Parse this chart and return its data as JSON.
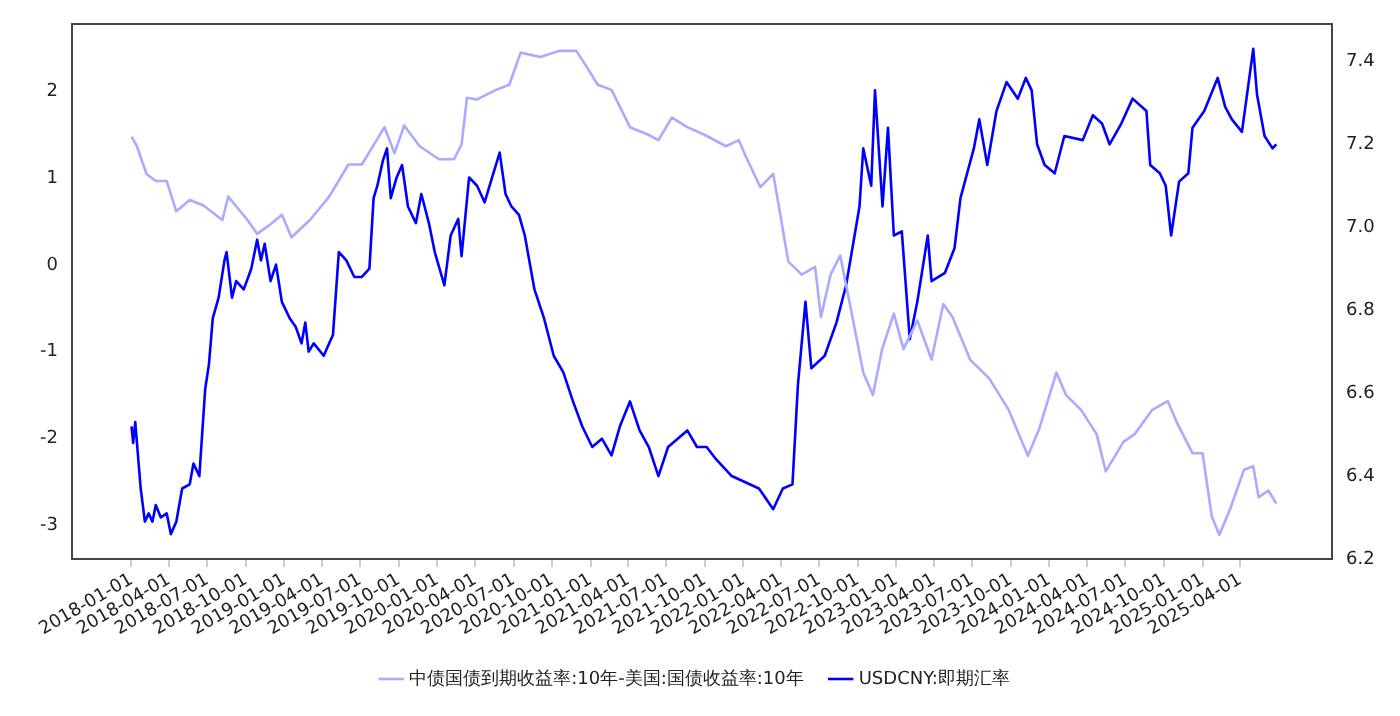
{
  "chart_data": {
    "type": "line",
    "legend": "bottom",
    "grid": false,
    "marker": "none",
    "line_style": "solid",
    "xlim": [
      "2017-08-12",
      "2025-11-06"
    ],
    "xticks": [
      "2018-01-01",
      "2018-04-01",
      "2018-07-01",
      "2018-10-01",
      "2019-01-01",
      "2019-04-01",
      "2019-07-01",
      "2019-10-01",
      "2020-01-01",
      "2020-04-01",
      "2020-07-01",
      "2020-10-01",
      "2021-01-01",
      "2021-04-01",
      "2021-07-01",
      "2021-10-01",
      "2022-01-01",
      "2022-04-01",
      "2022-07-01",
      "2022-10-01",
      "2023-01-01",
      "2023-04-01",
      "2023-07-01",
      "2023-10-01",
      "2024-01-01",
      "2024-04-01",
      "2024-07-01",
      "2024-10-01",
      "2025-01-01",
      "2025-04-01"
    ],
    "ylim": [
      -3.39,
      2.78
    ],
    "yticks": [
      -3,
      -2,
      -1,
      0,
      1,
      2
    ],
    "y2lim": [
      6.2,
      7.49
    ],
    "y2ticks": [
      6.2,
      6.4,
      6.6,
      6.8,
      {
        "value": 7,
        "label": "7.0"
      },
      7.2,
      7.4
    ],
    "series": [
      {
        "name": "中债国债到期收益率:10年-美国:国债收益率:10年",
        "color": "#aaaaff",
        "x": [
          "2018-01-01",
          "2018-01-14",
          "2018-02-06",
          "2018-02-28",
          "2018-03-26",
          "2018-04-18",
          "2018-05-20",
          "2018-06-21",
          "2018-08-06",
          "2018-08-20",
          "2018-10-05",
          "2018-10-28",
          "2018-11-29",
          "2018-12-26",
          "2019-01-18",
          "2019-03-03",
          "2019-04-18",
          "2019-06-03",
          "2019-07-05",
          "2019-08-28",
          "2019-09-21",
          "2019-10-14",
          "2019-11-20",
          "2020-01-05",
          "2020-02-10",
          "2020-02-28",
          "2020-03-12",
          "2020-04-05",
          "2020-05-20",
          "2020-06-21",
          "2020-07-18",
          "2020-09-03",
          "2020-10-18",
          "2020-11-28",
          "2020-12-21",
          "2021-01-18",
          "2021-02-20",
          "2021-04-05",
          "2021-05-20",
          "2021-06-12",
          "2021-07-14",
          "2021-08-20",
          "2021-10-01",
          "2021-11-20",
          "2021-12-21",
          "2022-01-05",
          "2022-02-10",
          "2022-03-13",
          "2022-03-26",
          "2022-04-18",
          "2022-05-20",
          "2022-06-21",
          "2022-07-05",
          "2022-07-28",
          "2022-08-20",
          "2022-09-12",
          "2022-10-14",
          "2022-11-06",
          "2022-11-28",
          "2022-12-26",
          "2023-01-18",
          "2023-02-20",
          "2023-03-26",
          "2023-04-23",
          "2023-05-15",
          "2023-06-26",
          "2023-08-11",
          "2023-09-26",
          "2023-11-11",
          "2023-12-08",
          "2024-01-18",
          "2024-02-10",
          "2024-03-17",
          "2024-04-23",
          "2024-05-15",
          "2024-06-26",
          "2024-07-23",
          "2024-09-03",
          "2024-10-10",
          "2024-11-01",
          "2024-12-08",
          "2025-01-01",
          "2025-01-23",
          "2025-02-10",
          "2025-03-08",
          "2025-04-10",
          "2025-05-02",
          "2025-05-15",
          "2025-06-07",
          "2025-06-26"
        ],
        "values": [
          1.48,
          1.37,
          1.05,
          0.97,
          0.97,
          0.62,
          0.75,
          0.69,
          0.52,
          0.79,
          0.52,
          0.36,
          0.47,
          0.58,
          0.32,
          0.52,
          0.79,
          1.16,
          1.16,
          1.59,
          1.29,
          1.61,
          1.37,
          1.22,
          1.22,
          1.39,
          1.93,
          1.91,
          2.02,
          2.08,
          2.45,
          2.4,
          2.47,
          2.47,
          2.3,
          2.08,
          2.02,
          1.59,
          1.5,
          1.44,
          1.7,
          1.59,
          1.5,
          1.37,
          1.44,
          1.27,
          0.9,
          1.05,
          0.69,
          0.04,
          -0.11,
          -0.02,
          -0.6,
          -0.11,
          0.11,
          -0.45,
          -1.24,
          -1.5,
          -0.97,
          -0.56,
          -0.97,
          -0.64,
          -1.09,
          -0.45,
          -0.6,
          -1.09,
          -1.31,
          -1.67,
          -2.2,
          -1.89,
          -1.24,
          -1.5,
          -1.67,
          -1.95,
          -2.38,
          -2.04,
          -1.95,
          -1.67,
          -1.57,
          -1.82,
          -2.17,
          -2.17,
          -2.9,
          -3.11,
          -2.81,
          -2.36,
          -2.32,
          -2.68,
          -2.6,
          -2.75
        ]
      },
      {
        "name": "USDCNY:即期汇率",
        "color": "#0000ff",
        "axis": "y2",
        "x": [
          "2018-01-01",
          "2018-01-05",
          "2018-01-10",
          "2018-01-23",
          "2018-02-02",
          "2018-02-11",
          "2018-02-20",
          "2018-02-28",
          "2018-03-12",
          "2018-03-26",
          "2018-04-05",
          "2018-04-18",
          "2018-05-02",
          "2018-05-20",
          "2018-05-29",
          "2018-06-12",
          "2018-06-26",
          "2018-07-05",
          "2018-07-14",
          "2018-07-28",
          "2018-08-11",
          "2018-08-16",
          "2018-08-29",
          "2018-09-08",
          "2018-09-26",
          "2018-10-14",
          "2018-10-28",
          "2018-11-06",
          "2018-11-15",
          "2018-11-29",
          "2018-12-12",
          "2018-12-26",
          "2019-01-14",
          "2019-01-28",
          "2019-02-11",
          "2019-02-20",
          "2019-02-28",
          "2019-03-12",
          "2019-04-05",
          "2019-04-18",
          "2019-04-27",
          "2019-05-11",
          "2019-05-29",
          "2019-06-17",
          "2019-07-05",
          "2019-07-23",
          "2019-08-02",
          "2019-08-11",
          "2019-08-24",
          "2019-09-03",
          "2019-09-12",
          "2019-09-26",
          "2019-10-09",
          "2019-10-23",
          "2019-11-11",
          "2019-11-24",
          "2019-12-12",
          "2019-12-26",
          "2020-01-18",
          "2020-02-02",
          "2020-02-20",
          "2020-02-28",
          "2020-03-17",
          "2020-04-05",
          "2020-04-23",
          "2020-05-11",
          "2020-05-29",
          "2020-06-12",
          "2020-06-26",
          "2020-07-14",
          "2020-07-28",
          "2020-08-20",
          "2020-09-12",
          "2020-10-05",
          "2020-10-28",
          "2020-11-20",
          "2020-12-12",
          "2021-01-05",
          "2021-01-28",
          "2021-02-20",
          "2021-03-12",
          "2021-04-05",
          "2021-04-28",
          "2021-05-20",
          "2021-06-12",
          "2021-07-05",
          "2021-07-28",
          "2021-08-20",
          "2021-09-12",
          "2021-10-05",
          "2021-10-28",
          "2021-12-04",
          "2022-02-07",
          "2022-03-13",
          "2022-04-05",
          "2022-04-28",
          "2022-05-11",
          "2022-05-29",
          "2022-06-12",
          "2022-07-14",
          "2022-08-11",
          "2022-09-03",
          "2022-10-05",
          "2022-10-14",
          "2022-11-02",
          "2022-11-11",
          "2022-11-29",
          "2022-12-12",
          "2022-12-26",
          "2023-01-14",
          "2023-02-02",
          "2023-02-20",
          "2023-03-17",
          "2023-03-26",
          "2023-04-27",
          "2023-05-20",
          "2023-06-03",
          "2023-07-05",
          "2023-07-18",
          "2023-08-06",
          "2023-08-28",
          "2023-09-21",
          "2023-10-18",
          "2023-11-06",
          "2023-11-20",
          "2023-12-03",
          "2023-12-21",
          "2024-01-14",
          "2024-02-06",
          "2024-03-21",
          "2024-04-14",
          "2024-05-06",
          "2024-05-24",
          "2024-06-21",
          "2024-07-18",
          "2024-08-20",
          "2024-08-29",
          "2024-09-21",
          "2024-10-05",
          "2024-10-18",
          "2024-11-06",
          "2024-11-28",
          "2024-12-08",
          "2025-01-05",
          "2025-02-06",
          "2025-02-24",
          "2025-03-12",
          "2025-04-05",
          "2025-05-02",
          "2025-05-11",
          "2025-05-29",
          "2025-06-17",
          "2025-06-26"
        ],
        "values": [
          6.52,
          6.48,
          6.53,
          6.37,
          6.29,
          6.31,
          6.29,
          6.33,
          6.3,
          6.31,
          6.26,
          6.29,
          6.37,
          6.38,
          6.43,
          6.4,
          6.61,
          6.67,
          6.78,
          6.83,
          6.92,
          6.94,
          6.83,
          6.87,
          6.85,
          6.9,
          6.97,
          6.92,
          6.96,
          6.87,
          6.91,
          6.82,
          6.78,
          6.76,
          6.72,
          6.77,
          6.7,
          6.72,
          6.69,
          6.72,
          6.74,
          6.94,
          6.92,
          6.88,
          6.88,
          6.9,
          7.07,
          7.1,
          7.16,
          7.19,
          7.07,
          7.12,
          7.15,
          7.05,
          7.01,
          7.08,
          7.01,
          6.94,
          6.86,
          6.98,
          7.02,
          6.93,
          7.12,
          7.1,
          7.06,
          7.12,
          7.18,
          7.08,
          7.05,
          7.03,
          6.98,
          6.85,
          6.78,
          6.69,
          6.65,
          6.58,
          6.52,
          6.47,
          6.49,
          6.45,
          6.52,
          6.58,
          6.51,
          6.47,
          6.4,
          6.47,
          6.49,
          6.51,
          6.47,
          6.47,
          6.44,
          6.4,
          6.37,
          6.32,
          6.37,
          6.38,
          6.62,
          6.82,
          6.66,
          6.69,
          6.77,
          6.86,
          7.05,
          7.19,
          7.1,
          7.33,
          7.05,
          7.24,
          6.98,
          6.99,
          6.73,
          6.82,
          6.98,
          6.87,
          6.89,
          6.95,
          7.07,
          7.19,
          7.26,
          7.15,
          7.28,
          7.35,
          7.31,
          7.36,
          7.33,
          7.2,
          7.15,
          7.13,
          7.22,
          7.21,
          7.27,
          7.25,
          7.2,
          7.25,
          7.31,
          7.28,
          7.15,
          7.13,
          7.1,
          6.98,
          7.11,
          7.13,
          7.24,
          7.28,
          7.36,
          7.29,
          7.26,
          7.23,
          7.43,
          7.32,
          7.22,
          7.19,
          7.2
        ]
      }
    ]
  }
}
